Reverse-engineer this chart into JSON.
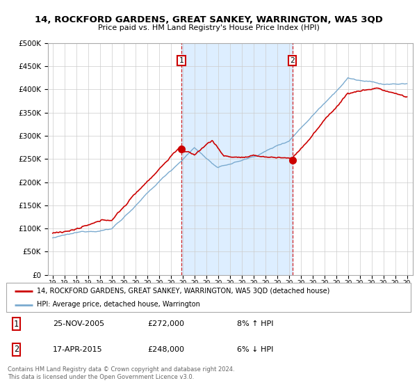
{
  "title": "14, ROCKFORD GARDENS, GREAT SANKEY, WARRINGTON, WA5 3QD",
  "subtitle": "Price paid vs. HM Land Registry's House Price Index (HPI)",
  "legend_line1": "14, ROCKFORD GARDENS, GREAT SANKEY, WARRINGTON, WA5 3QD (detached house)",
  "legend_line2": "HPI: Average price, detached house, Warrington",
  "transaction1_date": "25-NOV-2005",
  "transaction1_price": 272000,
  "transaction1_hpi": "8% ↑ HPI",
  "transaction2_date": "17-APR-2015",
  "transaction2_price": 248000,
  "transaction2_hpi": "6% ↓ HPI",
  "footnote": "Contains HM Land Registry data © Crown copyright and database right 2024.\nThis data is licensed under the Open Government Licence v3.0.",
  "red_color": "#cc0000",
  "blue_color": "#7aaacf",
  "shade_color": "#ddeeff",
  "t1_year": 2005.9,
  "t2_year": 2015.3,
  "t1_price": 272000,
  "t2_price": 248000,
  "ylim_max": 500000,
  "ylim_min": 0
}
